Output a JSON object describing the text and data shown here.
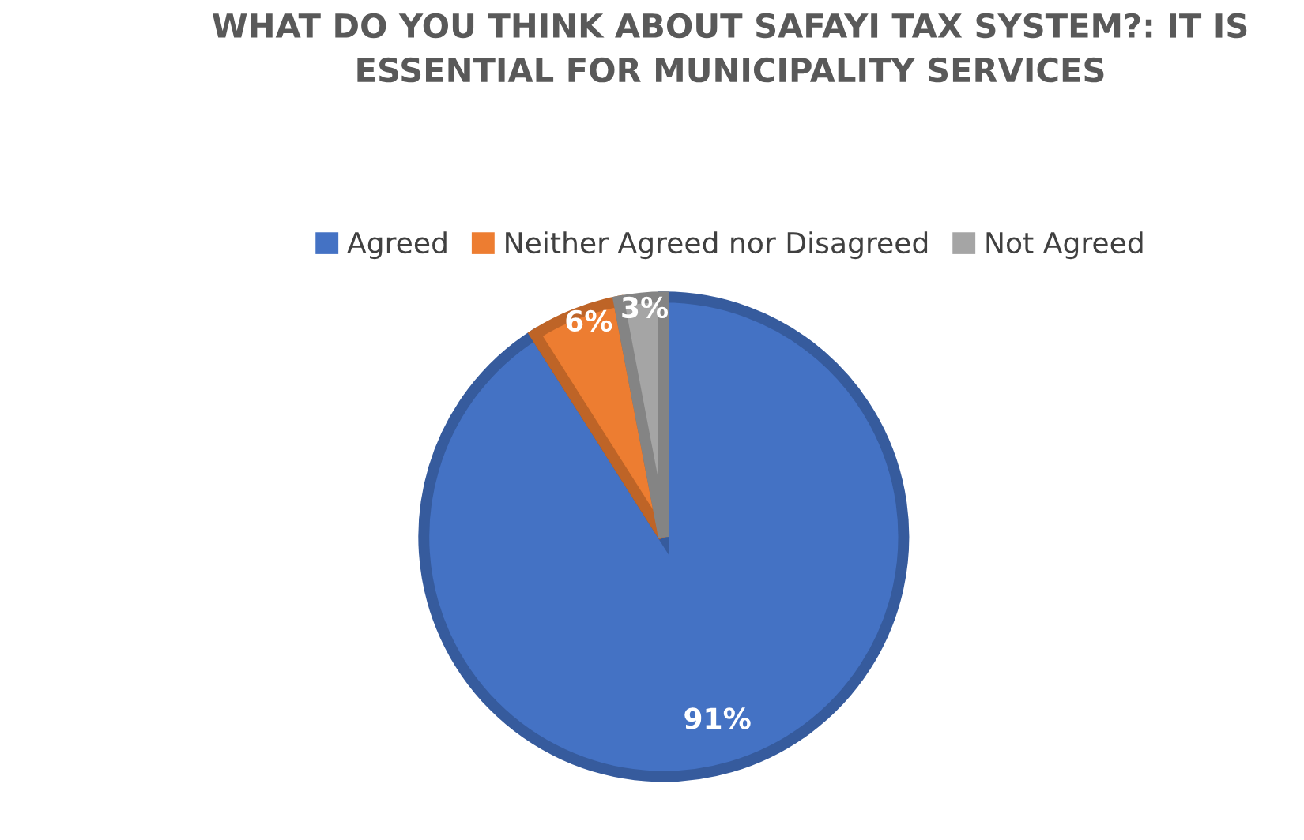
{
  "chart_data": {
    "type": "pie",
    "title": "WHAT DO YOU THINK ABOUT SAFAYI TAX SYSTEM?: IT IS ESSENTIAL FOR MUNICIPALITY SERVICES",
    "categories": [
      "Agreed",
      "Neither Agreed nor Disagreed",
      "Not Agreed"
    ],
    "values": [
      91,
      6,
      3
    ],
    "colors": [
      "#4472c4",
      "#ed7d31",
      "#a5a5a5"
    ],
    "value_labels": [
      "91%",
      "6%",
      "3%"
    ],
    "legend": "top"
  }
}
